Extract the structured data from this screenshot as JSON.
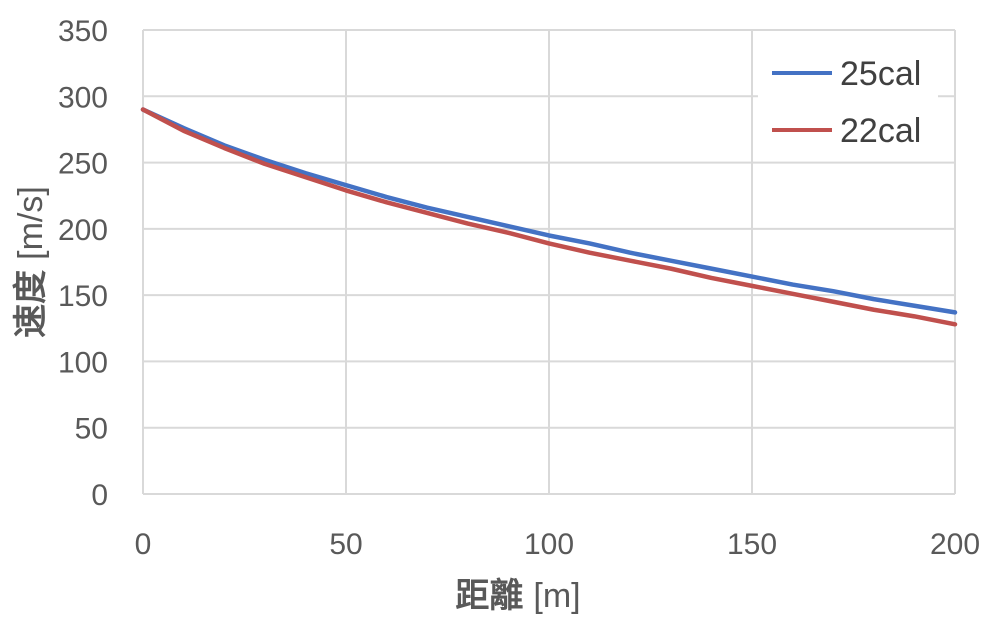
{
  "chart_data": {
    "type": "line",
    "x": [
      0,
      10,
      20,
      30,
      40,
      50,
      60,
      70,
      80,
      90,
      100,
      110,
      120,
      130,
      140,
      150,
      160,
      170,
      180,
      190,
      200
    ],
    "series": [
      {
        "name": "25cal",
        "color": "#4472C4",
        "values": [
          290,
          276,
          263,
          252,
          242,
          233,
          224,
          216,
          209,
          202,
          195,
          189,
          182,
          176,
          170,
          164,
          158,
          153,
          147,
          142,
          137
        ]
      },
      {
        "name": "22cal",
        "color": "#C0504D",
        "values": [
          290,
          274,
          261,
          249,
          239,
          229,
          220,
          212,
          204,
          197,
          189,
          182,
          176,
          170,
          163,
          157,
          151,
          145,
          139,
          134,
          128
        ]
      }
    ],
    "xlabel": "距離",
    "xlabel_unit": "[m]",
    "ylabel": "速度",
    "ylabel_unit": "[m/s]",
    "xlim": [
      0,
      200
    ],
    "ylim": [
      0,
      350
    ],
    "xticks": [
      "0",
      "50",
      "100",
      "150",
      "200"
    ],
    "yticks": [
      "0",
      "50",
      "100",
      "150",
      "200",
      "250",
      "300",
      "350"
    ],
    "grid": true,
    "legend_position": "top-right"
  }
}
